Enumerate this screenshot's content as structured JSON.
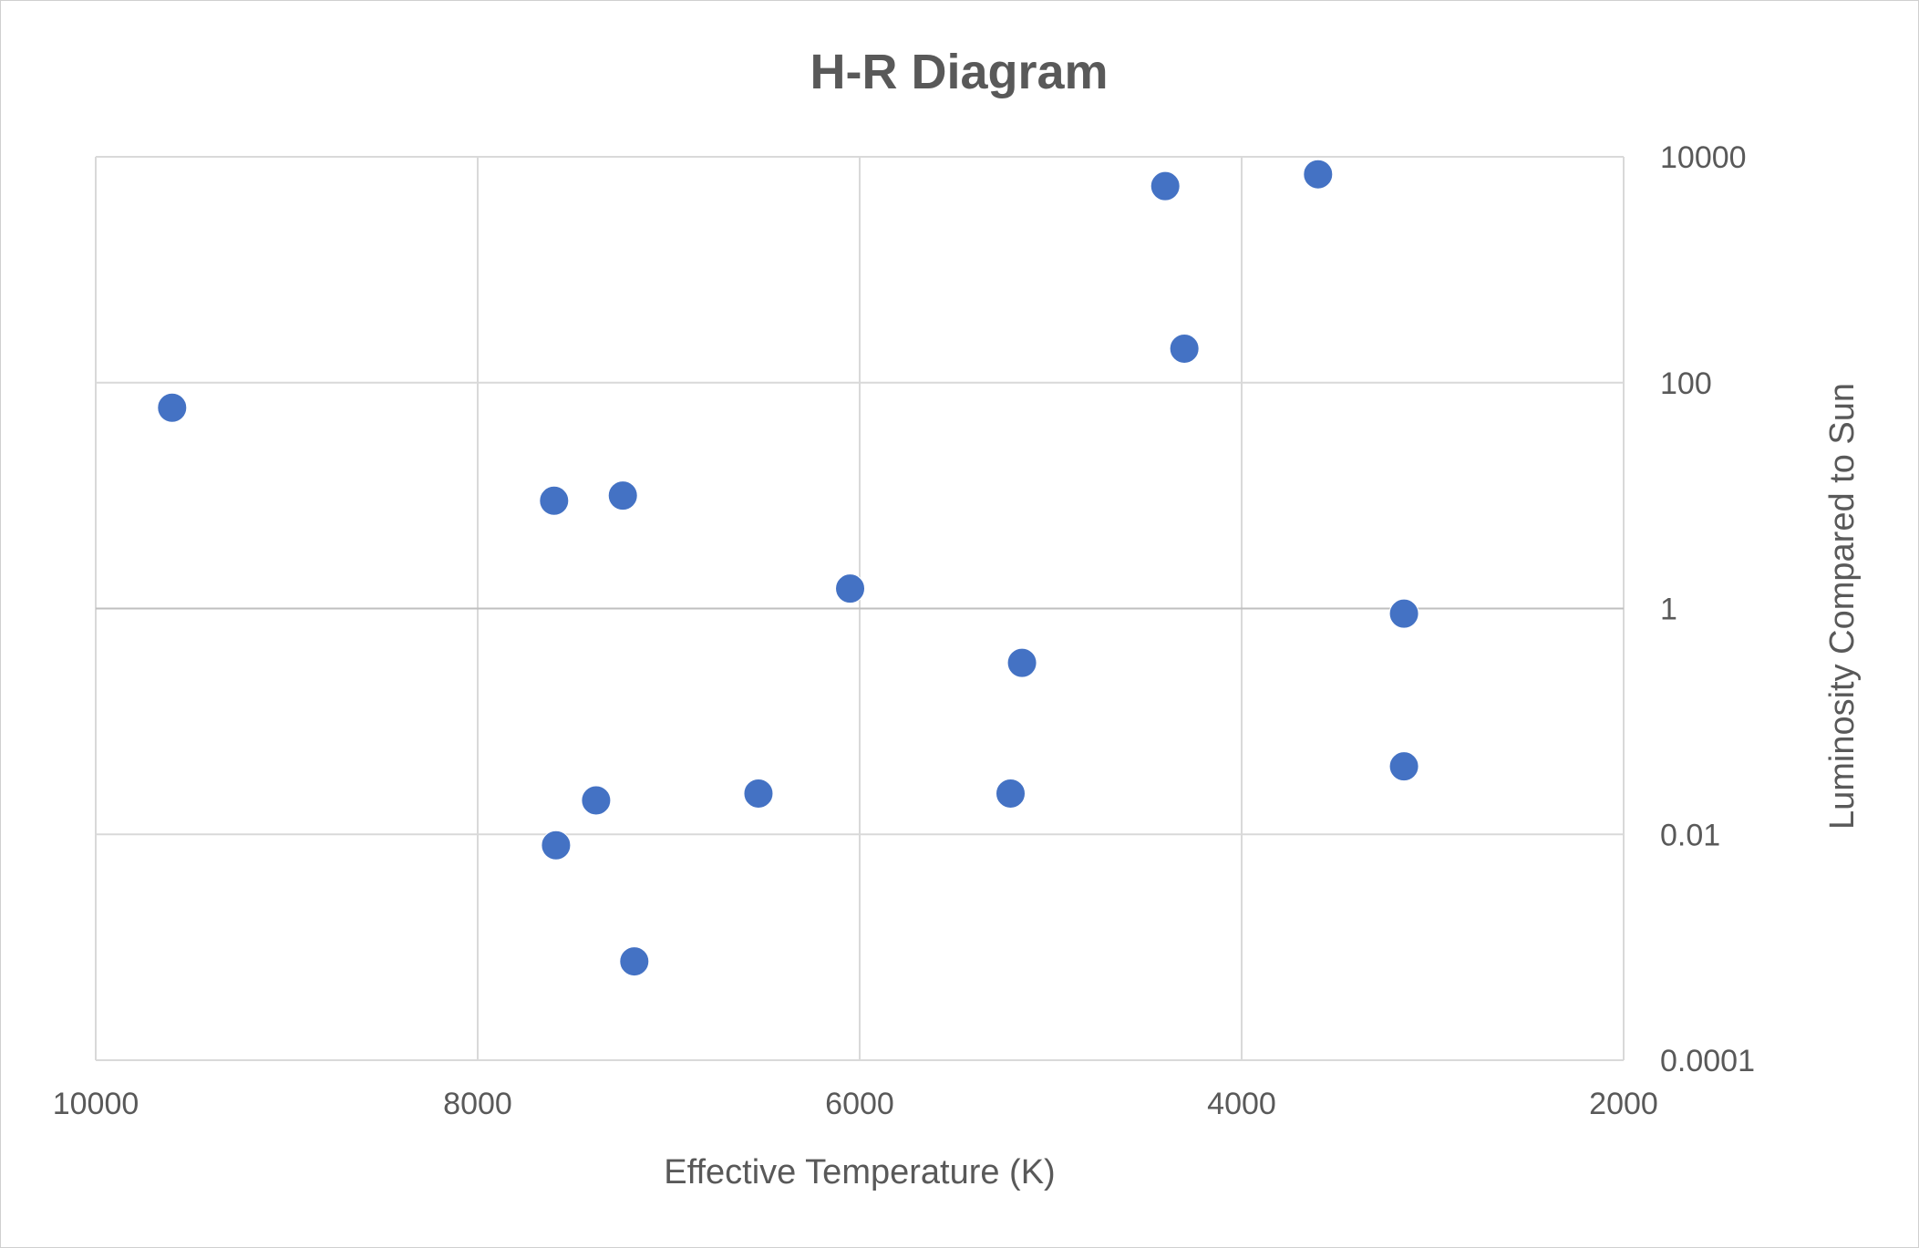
{
  "chart_data": {
    "type": "scatter",
    "title": "H-R Diagram",
    "xlabel": "Effective Temperature (K)",
    "ylabel": "Luminosity Compared to Sun",
    "xlim": [
      10000,
      2000
    ],
    "x_reversed": true,
    "ylim": [
      0.0001,
      10000
    ],
    "y_scale": "log",
    "y_axis_position": "right",
    "grid": true,
    "legend": "none",
    "x_ticks": [
      "10000",
      "8000",
      "6000",
      "4000",
      "2000"
    ],
    "y_ticks": [
      "10000",
      "100",
      "1",
      "0.01",
      "0.0001"
    ],
    "marker_color": "#4472c4",
    "points": [
      {
        "x": 9600,
        "y": 60
      },
      {
        "x": 7600,
        "y": 9
      },
      {
        "x": 7240,
        "y": 10
      },
      {
        "x": 6050,
        "y": 1.5
      },
      {
        "x": 4400,
        "y": 5500
      },
      {
        "x": 3600,
        "y": 7000
      },
      {
        "x": 4300,
        "y": 200
      },
      {
        "x": 3150,
        "y": 0.9
      },
      {
        "x": 5150,
        "y": 0.33
      },
      {
        "x": 3150,
        "y": 0.04
      },
      {
        "x": 5210,
        "y": 0.023
      },
      {
        "x": 6530,
        "y": 0.023
      },
      {
        "x": 7380,
        "y": 0.02
      },
      {
        "x": 7590,
        "y": 0.008
      },
      {
        "x": 7180,
        "y": 0.00075
      }
    ]
  }
}
